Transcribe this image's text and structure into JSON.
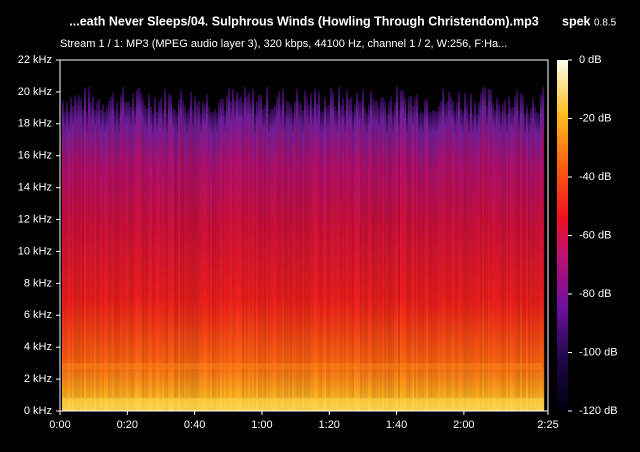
{
  "chart_data": {
    "type": "spectrogram",
    "title": "...eath Never Sleeps/04. Sulphrous Winds (Howling Through Christendom).mp3",
    "app_name": "spek",
    "app_version": "0.8.5",
    "subtitle": "Stream 1 / 1: MP3 (MPEG audio layer 3), 320 kbps, 44100 Hz, channel 1 / 2, W:256, F:Ha...",
    "xlim": [
      0,
      145
    ],
    "xticks": [
      {
        "value": 0,
        "label": "0:00"
      },
      {
        "value": 20,
        "label": "0:20"
      },
      {
        "value": 40,
        "label": "0:40"
      },
      {
        "value": 60,
        "label": "1:00"
      },
      {
        "value": 80,
        "label": "1:20"
      },
      {
        "value": 100,
        "label": "1:40"
      },
      {
        "value": 120,
        "label": "2:00"
      },
      {
        "value": 145,
        "label": "2:25"
      }
    ],
    "ylim": [
      0,
      22
    ],
    "yticks": [
      {
        "value": 0,
        "label": "0 kHz"
      },
      {
        "value": 2,
        "label": "2 kHz"
      },
      {
        "value": 4,
        "label": "4 kHz"
      },
      {
        "value": 6,
        "label": "6 kHz"
      },
      {
        "value": 8,
        "label": "8 kHz"
      },
      {
        "value": 10,
        "label": "10 kHz"
      },
      {
        "value": 12,
        "label": "12 kHz"
      },
      {
        "value": 14,
        "label": "14 kHz"
      },
      {
        "value": 16,
        "label": "16 kHz"
      },
      {
        "value": 18,
        "label": "18 kHz"
      },
      {
        "value": 20,
        "label": "20 kHz"
      },
      {
        "value": 22,
        "label": "22 kHz"
      }
    ],
    "clim": [
      -120,
      0
    ],
    "cticks": [
      {
        "value": 0,
        "label": "0 dB"
      },
      {
        "value": -20,
        "label": "-20 dB"
      },
      {
        "value": -40,
        "label": "-40 dB"
      },
      {
        "value": -60,
        "label": "-60 dB"
      },
      {
        "value": -80,
        "label": "-80 dB"
      },
      {
        "value": -100,
        "label": "-100 dB"
      },
      {
        "value": -120,
        "label": "-120 dB"
      }
    ]
  }
}
